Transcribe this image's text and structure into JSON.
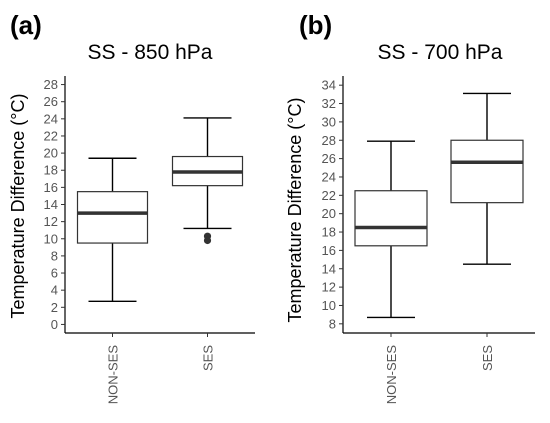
{
  "chart_data": [
    {
      "type": "box",
      "panel_label": "(a)",
      "title": "SS - 850 hPa",
      "xlabel": "",
      "ylabel": "Temperature Difference (°C)",
      "ylim": [
        -1,
        29
      ],
      "yticks": [
        0,
        2,
        4,
        6,
        8,
        10,
        12,
        14,
        16,
        18,
        20,
        22,
        24,
        26,
        28
      ],
      "categories": [
        "NON-SES",
        "SES"
      ],
      "boxes": [
        {
          "category": "NON-SES",
          "whisker_low": 2.7,
          "q1": 9.5,
          "median": 13.0,
          "q3": 15.5,
          "whisker_high": 19.4,
          "outliers": []
        },
        {
          "category": "SES",
          "whisker_low": 11.2,
          "q1": 16.2,
          "median": 17.8,
          "q3": 19.6,
          "whisker_high": 24.1,
          "outliers": [
            10.3,
            9.8
          ]
        }
      ]
    },
    {
      "type": "box",
      "panel_label": "(b)",
      "title": "SS - 700 hPa",
      "xlabel": "",
      "ylabel": "Temperature Difference (°C)",
      "ylim": [
        7,
        35
      ],
      "yticks": [
        8,
        10,
        12,
        14,
        16,
        18,
        20,
        22,
        24,
        26,
        28,
        30,
        32,
        34
      ],
      "categories": [
        "NON-SES",
        "SES"
      ],
      "boxes": [
        {
          "category": "NON-SES",
          "whisker_low": 8.7,
          "q1": 16.5,
          "median": 18.5,
          "q3": 22.5,
          "whisker_high": 27.9,
          "outliers": []
        },
        {
          "category": "SES",
          "whisker_low": 14.5,
          "q1": 21.2,
          "median": 25.6,
          "q3": 28.0,
          "whisker_high": 33.1,
          "outliers": []
        }
      ]
    }
  ]
}
